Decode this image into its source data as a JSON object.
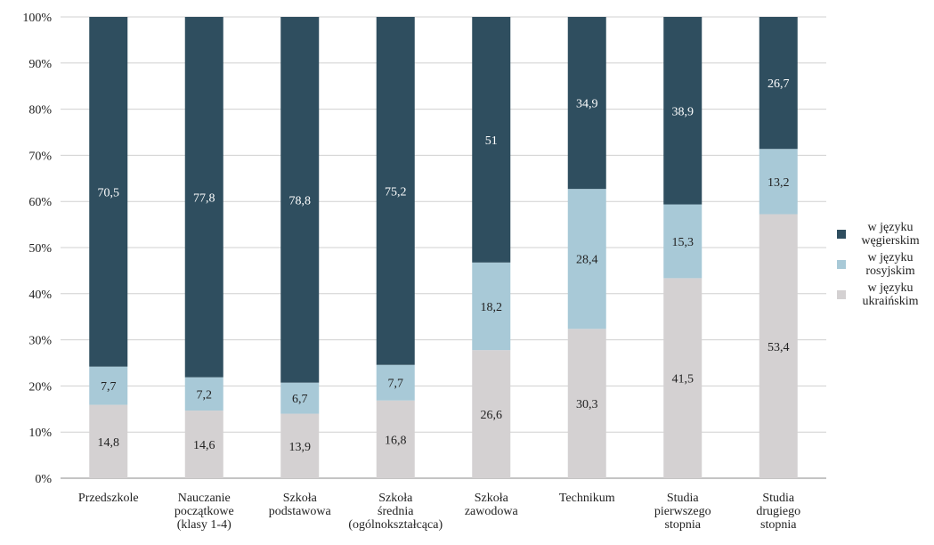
{
  "chart_data": {
    "type": "bar",
    "stack": "percent",
    "categories": [
      [
        "Przedszkole"
      ],
      [
        "Nauczanie",
        "początkowe",
        "(klasy 1-4)"
      ],
      [
        "Szkoła",
        "podstawowa"
      ],
      [
        "Szkoła",
        "średnia",
        "(ogólnokształcąca)"
      ],
      [
        "Szkoła",
        "zawodowa"
      ],
      [
        "Technikum"
      ],
      [
        "Studia",
        "pierwszego",
        "stopnia"
      ],
      [
        "Studia",
        "drugiego",
        "stopnia"
      ]
    ],
    "series": [
      {
        "name": "w języku węgierskim",
        "color": "#2f4e5f",
        "label_color": "#ffffff",
        "values": [
          70.5,
          77.8,
          78.8,
          75.2,
          51,
          34.9,
          38.9,
          26.7
        ],
        "value_labels": [
          "70,5",
          "77,8",
          "78,8",
          "75,2",
          "51",
          "34,9",
          "38,9",
          "26,7"
        ]
      },
      {
        "name": "w języku rosyjskim",
        "color": "#a8c9d7",
        "label_color": "#222222",
        "values": [
          7.7,
          7.2,
          6.7,
          7.7,
          18.2,
          28.4,
          15.3,
          13.2
        ],
        "value_labels": [
          "7,7",
          "7,2",
          "6,7",
          "7,7",
          "18,2",
          "28,4",
          "15,3",
          "13,2"
        ]
      },
      {
        "name": "w języku ukraińskim",
        "color": "#d4d1d2",
        "label_color": "#222222",
        "values": [
          14.8,
          14.6,
          13.9,
          16.8,
          26.6,
          30.3,
          41.5,
          53.4
        ],
        "value_labels": [
          "14,8",
          "14,6",
          "13,9",
          "16,8",
          "26,6",
          "30,3",
          "41,5",
          "53,4"
        ]
      }
    ],
    "ylim": [
      0,
      100
    ],
    "yticks": [
      {
        "value": 0,
        "label": "0%"
      },
      {
        "value": 10,
        "label": "10%"
      },
      {
        "value": 20,
        "label": "20%"
      },
      {
        "value": 30,
        "label": "30%"
      },
      {
        "value": 40,
        "label": "40%"
      },
      {
        "value": 50,
        "label": "50%"
      },
      {
        "value": 60,
        "label": "60%"
      },
      {
        "value": 70,
        "label": "70%"
      },
      {
        "value": 80,
        "label": "80%"
      },
      {
        "value": 90,
        "label": "90%"
      },
      {
        "value": 100,
        "label": "100%"
      }
    ],
    "grid": true,
    "legend": "right"
  }
}
